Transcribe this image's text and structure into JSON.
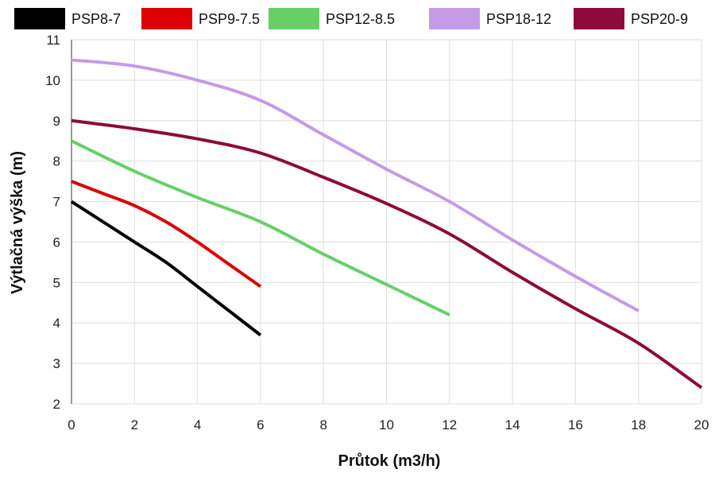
{
  "chart_data": {
    "type": "line",
    "xlabel": "Průtok (m3/h)",
    "ylabel": "Výtlačná výška (m)",
    "xlim": [
      0,
      20
    ],
    "ylim": [
      2,
      11
    ],
    "x_ticks": [
      0,
      2,
      4,
      6,
      8,
      10,
      12,
      14,
      16,
      18,
      20
    ],
    "y_ticks": [
      2,
      3,
      4,
      5,
      6,
      7,
      8,
      9,
      10,
      11
    ],
    "grid": true,
    "legend_position": "top",
    "series": [
      {
        "name": "PSP8-7",
        "color": "#000000",
        "x": [
          0,
          1,
          2,
          3,
          4,
          5,
          6
        ],
        "y": [
          7.0,
          6.5,
          6.0,
          5.5,
          4.9,
          4.3,
          3.7
        ]
      },
      {
        "name": "PSP9-7.5",
        "color": "#dd0000",
        "x": [
          0,
          1,
          2,
          3,
          4,
          5,
          6
        ],
        "y": [
          7.5,
          7.2,
          6.9,
          6.5,
          6.0,
          5.45,
          4.9
        ]
      },
      {
        "name": "PSP12-8.5",
        "color": "#66d066",
        "x": [
          0,
          2,
          4,
          6,
          8,
          10,
          12
        ],
        "y": [
          8.5,
          7.75,
          7.1,
          6.5,
          5.7,
          4.95,
          4.2
        ]
      },
      {
        "name": "PSP18-12",
        "color": "#c39be6",
        "x": [
          0,
          2,
          4,
          6,
          8,
          10,
          12,
          14,
          16,
          18
        ],
        "y": [
          10.5,
          10.35,
          10.0,
          9.5,
          8.65,
          7.8,
          7.0,
          6.05,
          5.15,
          4.3
        ]
      },
      {
        "name": "PSP20-9",
        "color": "#8e0a3a",
        "x": [
          0,
          2,
          4,
          6,
          8,
          10,
          12,
          14,
          16,
          18,
          20
        ],
        "y": [
          9.0,
          8.8,
          8.55,
          8.2,
          7.6,
          6.95,
          6.2,
          5.25,
          4.35,
          3.5,
          2.4
        ]
      }
    ]
  }
}
